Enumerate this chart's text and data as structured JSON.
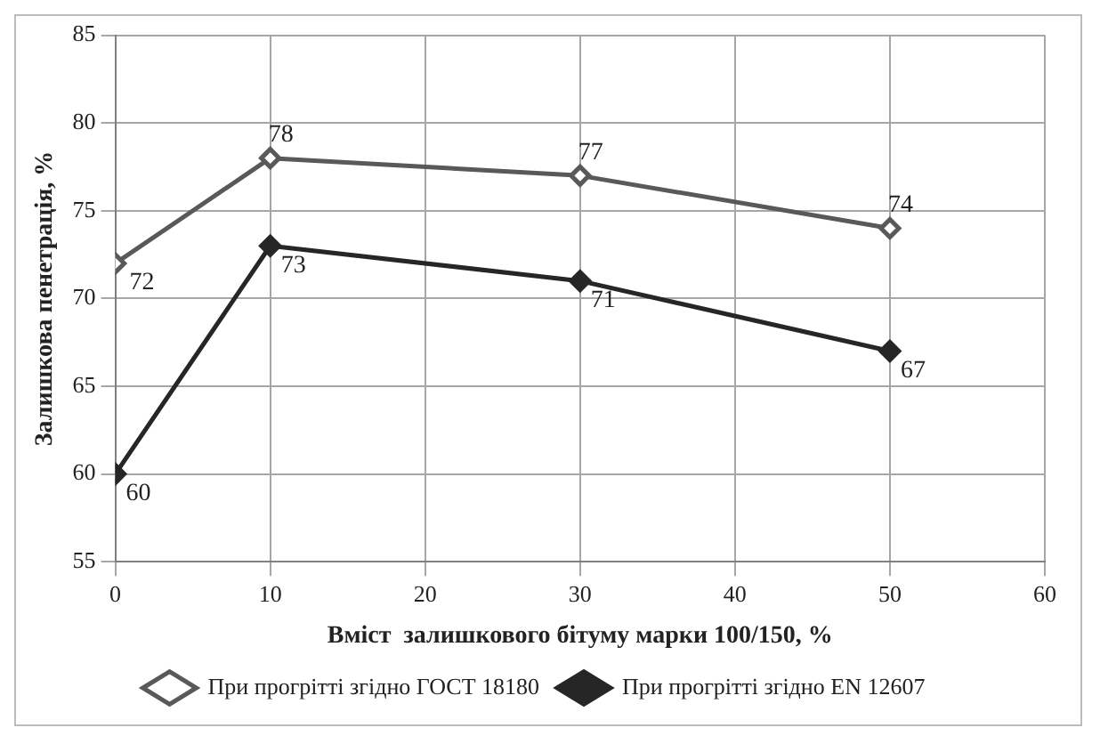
{
  "chart_data": {
    "type": "line",
    "xlabel": "Вміст  залишкового бітуму марки 100/150, %",
    "ylabel": "Залишкова пенетрація, %",
    "x": [
      0,
      10,
      30,
      50
    ],
    "series": [
      {
        "name": "При прогрітті згідно ГОСТ 18180",
        "color": "#595959",
        "values": [
          72,
          78,
          77,
          74
        ]
      },
      {
        "name": "При прогрітті згідно EN 12607",
        "color": "#262626",
        "values": [
          60,
          73,
          71,
          67
        ]
      }
    ],
    "xlim": [
      0,
      60
    ],
    "xticks": [
      0,
      10,
      20,
      30,
      40,
      50,
      60
    ],
    "ylim": [
      55,
      85
    ],
    "yticks": [
      55,
      60,
      65,
      70,
      75,
      80,
      85
    ],
    "grid": true,
    "legend": "bottom",
    "marker": "diamond",
    "line_style": "solid",
    "data_labels": true
  }
}
